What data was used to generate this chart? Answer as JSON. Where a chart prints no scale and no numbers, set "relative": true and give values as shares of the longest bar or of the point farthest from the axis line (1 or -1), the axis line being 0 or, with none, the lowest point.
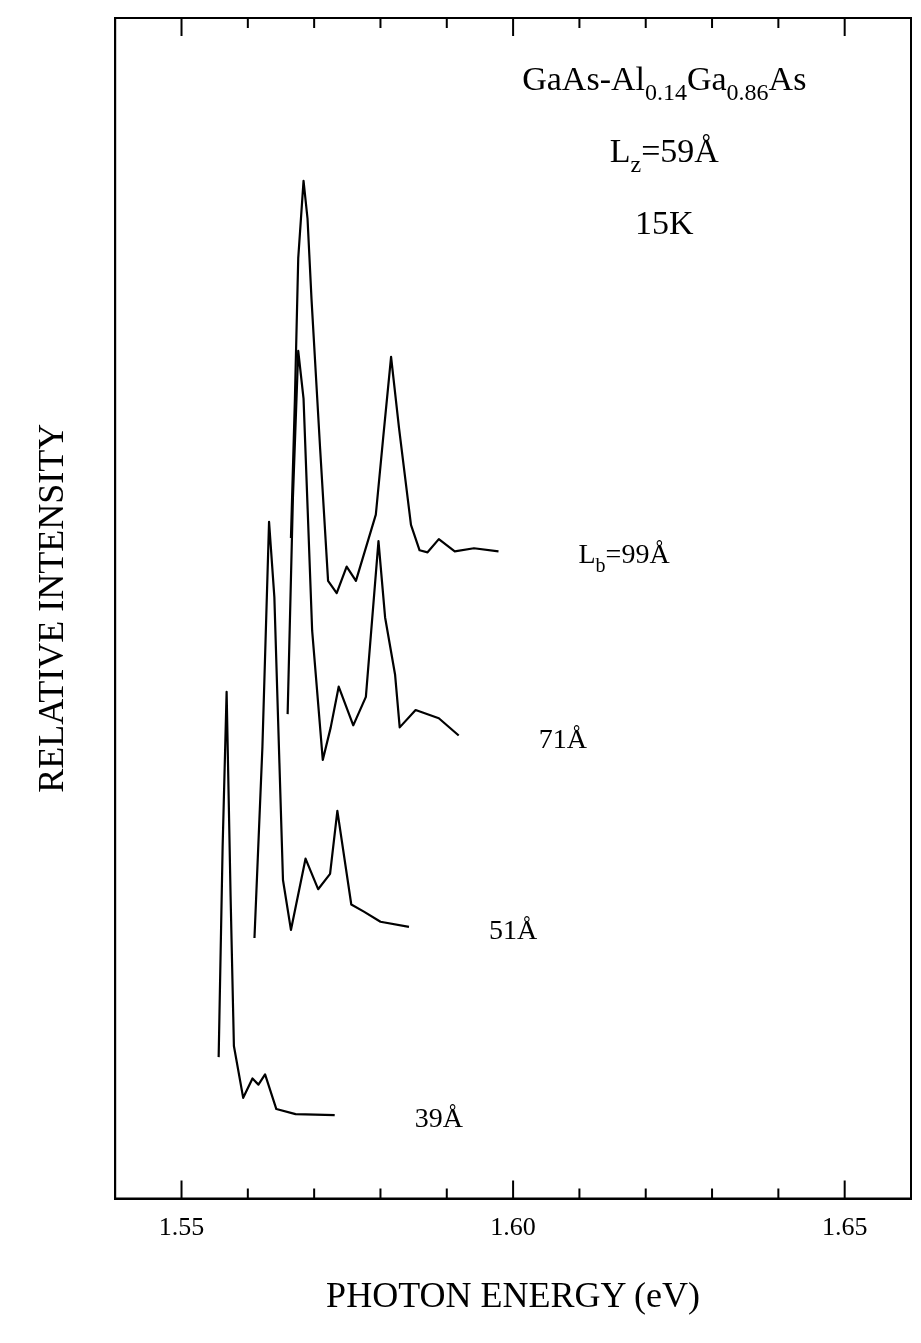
{
  "chart_data": {
    "type": "line",
    "relative": true,
    "xlabel": "PHOTON ENERGY (eV)",
    "ylabel": "RELATIVE INTENSITY",
    "annotations": [
      "GaAs-Al$_{0.14}$Ga$_{0.86}$As",
      "L$_{z}$=59Å",
      "15K"
    ],
    "xlim": [
      1.54,
      1.66
    ],
    "xticks": [
      1.55,
      {
        "value": 1.56,
        "label": null
      },
      {
        "value": 1.57,
        "label": null
      },
      {
        "value": 1.58,
        "label": null
      },
      {
        "value": 1.59,
        "label": null
      },
      {
        "value": 1.6,
        "label": "1.60"
      },
      {
        "value": 1.61,
        "label": null
      },
      {
        "value": 1.62,
        "label": null
      },
      {
        "value": 1.63,
        "label": null
      },
      {
        "value": 1.64,
        "label": null
      },
      1.65
    ],
    "grid": false,
    "legend": false,
    "series": [
      {
        "name": "L$_{b}$=99Å",
        "color": "#000000",
        "x": [
          1.5665,
          1.5671,
          1.5676,
          1.5684,
          1.569,
          1.5696,
          1.5709,
          1.5721,
          1.5734,
          1.5749,
          1.5763,
          1.5793,
          1.5804,
          1.5816,
          1.5828,
          1.5846,
          1.5859,
          1.5871,
          1.5888,
          1.5912,
          1.5941,
          1.5978
        ],
        "values": [
          0.649,
          0.786,
          0.924,
          1.0,
          0.963,
          0.884,
          0.737,
          0.607,
          0.595,
          0.621,
          0.607,
          0.672,
          0.747,
          0.827,
          0.757,
          0.662,
          0.637,
          0.635,
          0.648,
          0.636,
          0.639,
          0.636
        ]
      },
      {
        "name": "71Å",
        "color": "#000000",
        "x": [
          1.566,
          1.5668,
          1.5676,
          1.5684,
          1.5697,
          1.5713,
          1.5725,
          1.5737,
          1.5759,
          1.5778,
          1.5797,
          1.5807,
          1.5822,
          1.5829,
          1.5853,
          1.5888,
          1.5918
        ],
        "values": [
          0.476,
          0.689,
          0.833,
          0.786,
          0.558,
          0.431,
          0.463,
          0.503,
          0.465,
          0.493,
          0.646,
          0.571,
          0.515,
          0.463,
          0.48,
          0.472,
          0.455
        ]
      },
      {
        "name": "51Å",
        "color": "#000000",
        "x": [
          1.561,
          1.5622,
          1.5632,
          1.564,
          1.5653,
          1.5665,
          1.5687,
          1.5706,
          1.5724,
          1.5735,
          1.5756,
          1.5775,
          1.58,
          1.5843
        ],
        "values": [
          0.256,
          0.444,
          0.665,
          0.591,
          0.313,
          0.264,
          0.334,
          0.304,
          0.319,
          0.381,
          0.289,
          0.282,
          0.272,
          0.267
        ]
      },
      {
        "name": "39Å",
        "color": "#000000",
        "x": [
          1.5556,
          1.5562,
          1.5568,
          1.5574,
          1.5579,
          1.5593,
          1.5607,
          1.5616,
          1.5626,
          1.5643,
          1.5672,
          1.5731
        ],
        "values": [
          0.139,
          0.346,
          0.498,
          0.297,
          0.15,
          0.099,
          0.118,
          0.112,
          0.122,
          0.088,
          0.083,
          0.082
        ]
      }
    ]
  }
}
